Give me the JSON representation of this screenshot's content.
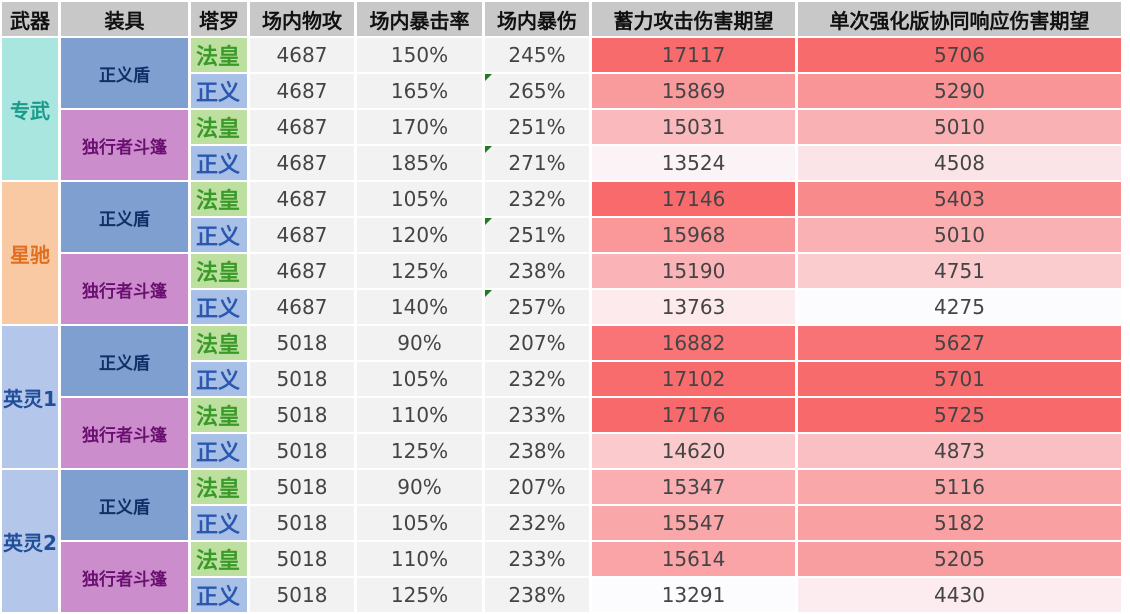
{
  "headers": [
    "武器",
    "装具",
    "塔罗",
    "场内物攻",
    "场内暴击率",
    "场内暴伤",
    "蓄力攻击伤害期望",
    "单次强化版协同响应伤害期望"
  ],
  "colors": {
    "header_bg": "#c8c8c8",
    "weapon_zhuanwu_bg": "#a8e6df",
    "weapon_zhuanwu_text": "#1a9a8a",
    "weapon_xingchi_bg": "#f9c9a4",
    "weapon_xingchi_text": "#e07020",
    "weapon_yingling_bg": "#b4c6ea",
    "weapon_yingling_text": "#1f4e9a",
    "equip_shield_bg": "#7f9fd0",
    "equip_shield_text": "#0f2f66",
    "equip_cloak_bg": "#cc8dcc",
    "equip_cloak_text": "#6a1070",
    "tarot_fahuang_bg": "#bde0a0",
    "tarot_fahuang_text": "#3a9a28",
    "tarot_zhengyi_bg": "#a8bfe6",
    "tarot_zhengyi_text": "#2a58b0",
    "heat_high": "#f8696b",
    "heat_low": "#fcfcff",
    "crit_flag": "#1e7b1e"
  },
  "rows": [
    {
      "weapon": "专武",
      "weapon_style": "zhuanwu",
      "equip": "正义盾",
      "equip_style": "shield",
      "tarot": "法皇",
      "tarot_style": "fahuang",
      "atk": "4687",
      "crit_rate": "150%",
      "crit_dmg": "245%",
      "crit_flag": false,
      "charge": "17117",
      "charge_val": 17117,
      "coop": "5706",
      "coop_val": 5706
    },
    {
      "weapon": "",
      "weapon_style": "",
      "equip": "",
      "equip_style": "",
      "tarot": "正义",
      "tarot_style": "zhengyi",
      "atk": "4687",
      "crit_rate": "165%",
      "crit_dmg": "265%",
      "crit_flag": true,
      "charge": "15869",
      "charge_val": 15869,
      "coop": "5290",
      "coop_val": 5290
    },
    {
      "weapon": "",
      "weapon_style": "",
      "equip": "独行者斗篷",
      "equip_style": "cloak",
      "tarot": "法皇",
      "tarot_style": "fahuang",
      "atk": "4687",
      "crit_rate": "170%",
      "crit_dmg": "251%",
      "crit_flag": false,
      "charge": "15031",
      "charge_val": 15031,
      "coop": "5010",
      "coop_val": 5010
    },
    {
      "weapon": "",
      "weapon_style": "",
      "equip": "",
      "equip_style": "",
      "tarot": "正义",
      "tarot_style": "zhengyi",
      "atk": "4687",
      "crit_rate": "185%",
      "crit_dmg": "271%",
      "crit_flag": true,
      "charge": "13524",
      "charge_val": 13524,
      "coop": "4508",
      "coop_val": 4508
    },
    {
      "weapon": "星驰",
      "weapon_style": "xingchi",
      "equip": "正义盾",
      "equip_style": "shield",
      "tarot": "法皇",
      "tarot_style": "fahuang",
      "atk": "4687",
      "crit_rate": "105%",
      "crit_dmg": "232%",
      "crit_flag": false,
      "charge": "17146",
      "charge_val": 17146,
      "coop": "5403",
      "coop_val": 5403
    },
    {
      "weapon": "",
      "weapon_style": "",
      "equip": "",
      "equip_style": "",
      "tarot": "正义",
      "tarot_style": "zhengyi",
      "atk": "4687",
      "crit_rate": "120%",
      "crit_dmg": "251%",
      "crit_flag": true,
      "charge": "15968",
      "charge_val": 15968,
      "coop": "5010",
      "coop_val": 5010
    },
    {
      "weapon": "",
      "weapon_style": "",
      "equip": "独行者斗篷",
      "equip_style": "cloak",
      "tarot": "法皇",
      "tarot_style": "fahuang",
      "atk": "4687",
      "crit_rate": "125%",
      "crit_dmg": "238%",
      "crit_flag": false,
      "charge": "15190",
      "charge_val": 15190,
      "coop": "4751",
      "coop_val": 4751
    },
    {
      "weapon": "",
      "weapon_style": "",
      "equip": "",
      "equip_style": "",
      "tarot": "正义",
      "tarot_style": "zhengyi",
      "atk": "4687",
      "crit_rate": "140%",
      "crit_dmg": "257%",
      "crit_flag": true,
      "charge": "13763",
      "charge_val": 13763,
      "coop": "4275",
      "coop_val": 4275
    },
    {
      "weapon": "英灵1",
      "weapon_style": "yingling",
      "equip": "正义盾",
      "equip_style": "shield",
      "tarot": "法皇",
      "tarot_style": "fahuang",
      "atk": "5018",
      "crit_rate": "90%",
      "crit_dmg": "207%",
      "crit_flag": false,
      "charge": "16882",
      "charge_val": 16882,
      "coop": "5627",
      "coop_val": 5627
    },
    {
      "weapon": "",
      "weapon_style": "",
      "equip": "",
      "equip_style": "",
      "tarot": "正义",
      "tarot_style": "zhengyi",
      "atk": "5018",
      "crit_rate": "105%",
      "crit_dmg": "232%",
      "crit_flag": false,
      "charge": "17102",
      "charge_val": 17102,
      "coop": "5701",
      "coop_val": 5701
    },
    {
      "weapon": "",
      "weapon_style": "",
      "equip": "独行者斗篷",
      "equip_style": "cloak",
      "tarot": "法皇",
      "tarot_style": "fahuang",
      "atk": "5018",
      "crit_rate": "110%",
      "crit_dmg": "233%",
      "crit_flag": false,
      "charge": "17176",
      "charge_val": 17176,
      "coop": "5725",
      "coop_val": 5725
    },
    {
      "weapon": "",
      "weapon_style": "",
      "equip": "",
      "equip_style": "",
      "tarot": "正义",
      "tarot_style": "zhengyi",
      "atk": "5018",
      "crit_rate": "125%",
      "crit_dmg": "238%",
      "crit_flag": false,
      "charge": "14620",
      "charge_val": 14620,
      "coop": "4873",
      "coop_val": 4873
    },
    {
      "weapon": "英灵2",
      "weapon_style": "yingling",
      "equip": "正义盾",
      "equip_style": "shield",
      "tarot": "法皇",
      "tarot_style": "fahuang",
      "atk": "5018",
      "crit_rate": "90%",
      "crit_dmg": "207%",
      "crit_flag": false,
      "charge": "15347",
      "charge_val": 15347,
      "coop": "5116",
      "coop_val": 5116
    },
    {
      "weapon": "",
      "weapon_style": "",
      "equip": "",
      "equip_style": "",
      "tarot": "正义",
      "tarot_style": "zhengyi",
      "atk": "5018",
      "crit_rate": "105%",
      "crit_dmg": "232%",
      "crit_flag": false,
      "charge": "15547",
      "charge_val": 15547,
      "coop": "5182",
      "coop_val": 5182
    },
    {
      "weapon": "",
      "weapon_style": "",
      "equip": "独行者斗篷",
      "equip_style": "cloak",
      "tarot": "法皇",
      "tarot_style": "fahuang",
      "atk": "5018",
      "crit_rate": "110%",
      "crit_dmg": "233%",
      "crit_flag": false,
      "charge": "15614",
      "charge_val": 15614,
      "coop": "5205",
      "coop_val": 5205
    },
    {
      "weapon": "",
      "weapon_style": "",
      "equip": "",
      "equip_style": "",
      "tarot": "正义",
      "tarot_style": "zhengyi",
      "atk": "5018",
      "crit_rate": "125%",
      "crit_dmg": "238%",
      "crit_flag": false,
      "charge": "13291",
      "charge_val": 13291,
      "coop": "4430",
      "coop_val": 4430
    }
  ]
}
